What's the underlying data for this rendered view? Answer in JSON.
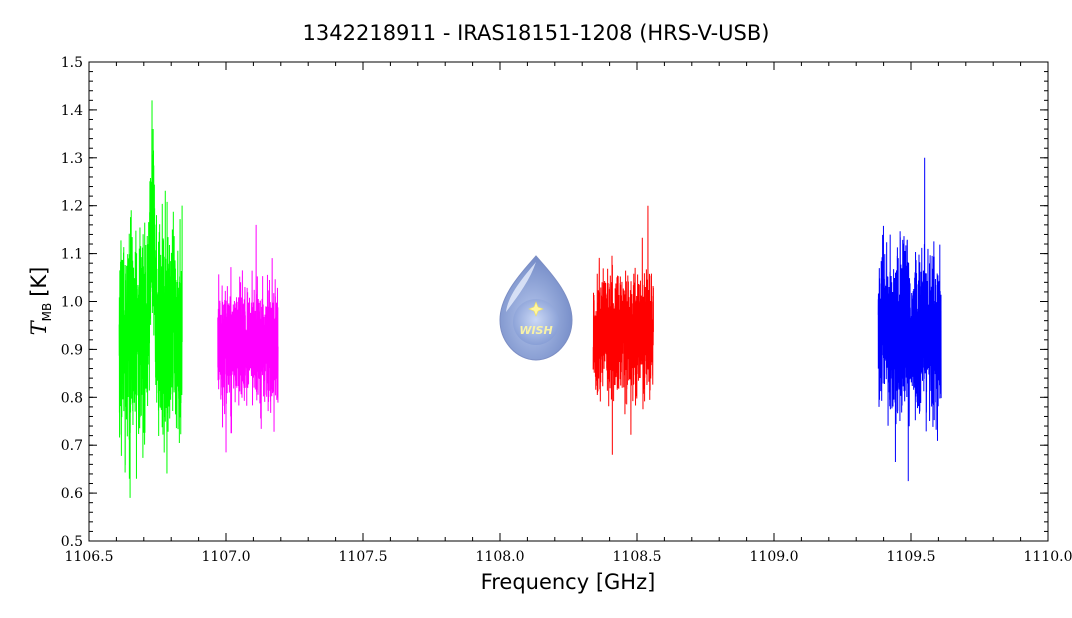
{
  "chart_data": {
    "type": "line",
    "title": "1342218911 - IRAS18151-1208 (HRS-V-USB)",
    "xlabel": "Frequency [GHz]",
    "ylabel_symbol": "T",
    "ylabel_subscript": "MB",
    "ylabel_unit": "[K]",
    "xlim": [
      1106.5,
      1110.0
    ],
    "ylim": [
      0.5,
      1.5
    ],
    "xticks": [
      "1106.5",
      "1107.0",
      "1107.5",
      "1108.0",
      "1108.5",
      "1109.0",
      "1109.5",
      "1110.0"
    ],
    "yticks": [
      "0.5",
      "0.6",
      "0.7",
      "0.8",
      "0.9",
      "1.0",
      "1.1",
      "1.2",
      "1.3",
      "1.4",
      "1.5"
    ],
    "grid": false,
    "series": [
      {
        "color": "#00ff00",
        "x_range": [
          1106.61,
          1106.84
        ],
        "center": 0.93,
        "min": 0.59,
        "max": 1.42,
        "peak_x": 1106.73,
        "peak_y": 1.42,
        "min_x": 1106.65
      },
      {
        "color": "#ff00ff",
        "x_range": [
          1106.97,
          1107.19
        ],
        "center": 0.91,
        "min": 0.685,
        "max": 1.16,
        "peak_x": 1107.11,
        "peak_y": 1.16,
        "min_x": 1107.0
      },
      {
        "color": "#ff0000",
        "x_range": [
          1108.34,
          1108.56
        ],
        "center": 0.93,
        "min": 0.68,
        "max": 1.2,
        "peak_x": 1108.54,
        "peak_y": 1.2,
        "min_x": 1108.41
      },
      {
        "color": "#0000ff",
        "x_range": [
          1109.38,
          1109.61
        ],
        "center": 0.93,
        "min": 0.625,
        "max": 1.3,
        "peak_x": 1109.55,
        "peak_y": 1.3,
        "min_x": 1109.49
      }
    ],
    "logo_text": "WISH"
  }
}
